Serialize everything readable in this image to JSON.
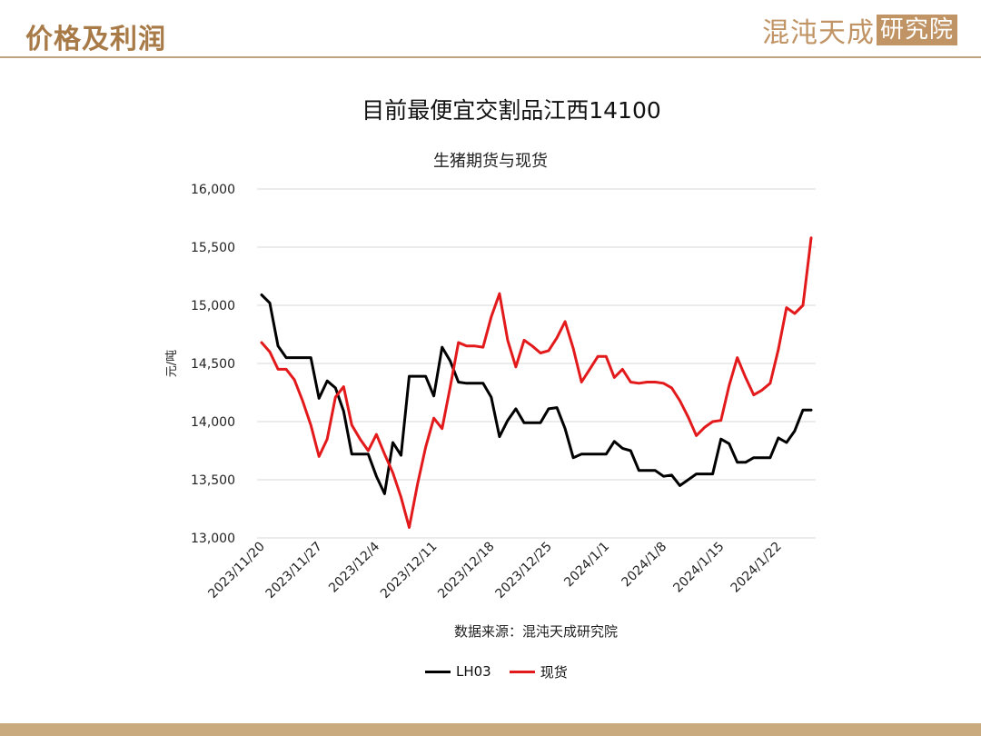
{
  "header": {
    "heading": "价格及利润",
    "brand_main": "混沌天成",
    "brand_box": "研究院"
  },
  "colors": {
    "accent": "#b08a5e",
    "footer": "#c9a97e",
    "lh03": "#000000",
    "spot": "#e31a1c"
  },
  "main_title": "目前最便宜交割品江西14100",
  "source_note": "数据来源：混沌天成研究院",
  "chart_data": {
    "type": "line",
    "title": "生猪期货与现货",
    "ylabel": "元/吨",
    "ylim": [
      13000,
      16000
    ],
    "yticks": [
      16000,
      15500,
      15000,
      14500,
      14000,
      13500,
      13000
    ],
    "ytick_labels": [
      "16,000",
      "15,500",
      "15,000",
      "14,500",
      "14,000",
      "13,500",
      "13,000"
    ],
    "x_start": "2023/11/20",
    "x_end": "2024/1/26",
    "xtick_dates": [
      "2023/11/20",
      "2023/11/27",
      "2023/12/4",
      "2023/12/11",
      "2023/12/18",
      "2023/12/25",
      "2024/1/1",
      "2024/1/8",
      "2024/1/15",
      "2024/1/22"
    ],
    "xtick_labels": [
      "2023/11/20",
      "2023/11/27",
      "2023/12/4",
      "2023/12/11",
      "2023/12/18",
      "2023/12/25",
      "2024/1/1",
      "2024/1/8",
      "2024/1/15",
      "2024/1/22"
    ],
    "grid": "horizontal",
    "legend_position": "bottom",
    "series": [
      {
        "name": "LH03",
        "color": "#000000",
        "points": [
          [
            "2023/11/20",
            15090
          ],
          [
            "2023/11/21",
            15020
          ],
          [
            "2023/11/22",
            14650
          ],
          [
            "2023/11/23",
            14550
          ],
          [
            "2023/11/24",
            14550
          ],
          [
            "2023/11/25",
            14550
          ],
          [
            "2023/11/26",
            14550
          ],
          [
            "2023/11/27",
            14200
          ],
          [
            "2023/11/28",
            14350
          ],
          [
            "2023/11/29",
            14290
          ],
          [
            "2023/11/30",
            14090
          ],
          [
            "2023/12/1",
            13720
          ],
          [
            "2023/12/2",
            13720
          ],
          [
            "2023/12/3",
            13720
          ],
          [
            "2023/12/4",
            13530
          ],
          [
            "2023/12/5",
            13380
          ],
          [
            "2023/12/6",
            13820
          ],
          [
            "2023/12/7",
            13710
          ],
          [
            "2023/12/8",
            14390
          ],
          [
            "2023/12/9",
            14390
          ],
          [
            "2023/12/10",
            14390
          ],
          [
            "2023/12/11",
            14220
          ],
          [
            "2023/12/12",
            14640
          ],
          [
            "2023/12/13",
            14520
          ],
          [
            "2023/12/14",
            14340
          ],
          [
            "2023/12/15",
            14330
          ],
          [
            "2023/12/16",
            14330
          ],
          [
            "2023/12/17",
            14330
          ],
          [
            "2023/12/18",
            14210
          ],
          [
            "2023/12/19",
            13870
          ],
          [
            "2023/12/20",
            14010
          ],
          [
            "2023/12/21",
            14110
          ],
          [
            "2023/12/22",
            13990
          ],
          [
            "2023/12/23",
            13990
          ],
          [
            "2023/12/24",
            13990
          ],
          [
            "2023/12/25",
            14110
          ],
          [
            "2023/12/26",
            14120
          ],
          [
            "2023/12/27",
            13940
          ],
          [
            "2023/12/28",
            13690
          ],
          [
            "2023/12/29",
            13720
          ],
          [
            "2023/12/30",
            13720
          ],
          [
            "2023/12/31",
            13720
          ],
          [
            "2024/1/1",
            13720
          ],
          [
            "2024/1/2",
            13830
          ],
          [
            "2024/1/3",
            13770
          ],
          [
            "2024/1/4",
            13750
          ],
          [
            "2024/1/5",
            13580
          ],
          [
            "2024/1/6",
            13580
          ],
          [
            "2024/1/7",
            13580
          ],
          [
            "2024/1/8",
            13530
          ],
          [
            "2024/1/9",
            13540
          ],
          [
            "2024/1/10",
            13450
          ],
          [
            "2024/1/11",
            13500
          ],
          [
            "2024/1/12",
            13550
          ],
          [
            "2024/1/13",
            13550
          ],
          [
            "2024/1/14",
            13550
          ],
          [
            "2024/1/15",
            13850
          ],
          [
            "2024/1/16",
            13810
          ],
          [
            "2024/1/17",
            13650
          ],
          [
            "2024/1/18",
            13650
          ],
          [
            "2024/1/19",
            13690
          ],
          [
            "2024/1/20",
            13690
          ],
          [
            "2024/1/21",
            13690
          ],
          [
            "2024/1/22",
            13860
          ],
          [
            "2024/1/23",
            13820
          ],
          [
            "2024/1/24",
            13920
          ],
          [
            "2024/1/25",
            14100
          ],
          [
            "2024/1/26",
            14100
          ]
        ]
      },
      {
        "name": "现货",
        "color": "#e31a1c",
        "points": [
          [
            "2023/11/20",
            14680
          ],
          [
            "2023/11/21",
            14600
          ],
          [
            "2023/11/22",
            14450
          ],
          [
            "2023/11/23",
            14450
          ],
          [
            "2023/11/24",
            14360
          ],
          [
            "2023/11/25",
            14180
          ],
          [
            "2023/11/26",
            13970
          ],
          [
            "2023/11/27",
            13700
          ],
          [
            "2023/11/28",
            13850
          ],
          [
            "2023/11/29",
            14210
          ],
          [
            "2023/11/30",
            14300
          ],
          [
            "2023/12/1",
            13970
          ],
          [
            "2023/12/2",
            13850
          ],
          [
            "2023/12/3",
            13750
          ],
          [
            "2023/12/4",
            13890
          ],
          [
            "2023/12/5",
            13720
          ],
          [
            "2023/12/6",
            13560
          ],
          [
            "2023/12/7",
            13350
          ],
          [
            "2023/12/8",
            13090
          ],
          [
            "2023/12/9",
            13460
          ],
          [
            "2023/12/10",
            13780
          ],
          [
            "2023/12/11",
            14030
          ],
          [
            "2023/12/12",
            13940
          ],
          [
            "2023/12/13",
            14300
          ],
          [
            "2023/12/14",
            14680
          ],
          [
            "2023/12/15",
            14650
          ],
          [
            "2023/12/16",
            14650
          ],
          [
            "2023/12/17",
            14640
          ],
          [
            "2023/12/18",
            14900
          ],
          [
            "2023/12/19",
            15100
          ],
          [
            "2023/12/20",
            14700
          ],
          [
            "2023/12/21",
            14470
          ],
          [
            "2023/12/22",
            14700
          ],
          [
            "2023/12/23",
            14650
          ],
          [
            "2023/12/24",
            14590
          ],
          [
            "2023/12/25",
            14610
          ],
          [
            "2023/12/26",
            14720
          ],
          [
            "2023/12/27",
            14860
          ],
          [
            "2023/12/28",
            14630
          ],
          [
            "2023/12/29",
            14340
          ],
          [
            "2023/12/30",
            14450
          ],
          [
            "2023/12/31",
            14560
          ],
          [
            "2024/1/1",
            14560
          ],
          [
            "2024/1/2",
            14380
          ],
          [
            "2024/1/3",
            14450
          ],
          [
            "2024/1/4",
            14340
          ],
          [
            "2024/1/5",
            14330
          ],
          [
            "2024/1/6",
            14340
          ],
          [
            "2024/1/7",
            14340
          ],
          [
            "2024/1/8",
            14330
          ],
          [
            "2024/1/9",
            14290
          ],
          [
            "2024/1/10",
            14180
          ],
          [
            "2024/1/11",
            14040
          ],
          [
            "2024/1/12",
            13880
          ],
          [
            "2024/1/13",
            13950
          ],
          [
            "2024/1/14",
            14000
          ],
          [
            "2024/1/15",
            14010
          ],
          [
            "2024/1/16",
            14310
          ],
          [
            "2024/1/17",
            14550
          ],
          [
            "2024/1/18",
            14380
          ],
          [
            "2024/1/19",
            14230
          ],
          [
            "2024/1/20",
            14270
          ],
          [
            "2024/1/21",
            14330
          ],
          [
            "2024/1/22",
            14620
          ],
          [
            "2024/1/23",
            14980
          ],
          [
            "2024/1/24",
            14930
          ],
          [
            "2024/1/25",
            15000
          ],
          [
            "2024/1/26",
            15580
          ]
        ]
      }
    ]
  }
}
